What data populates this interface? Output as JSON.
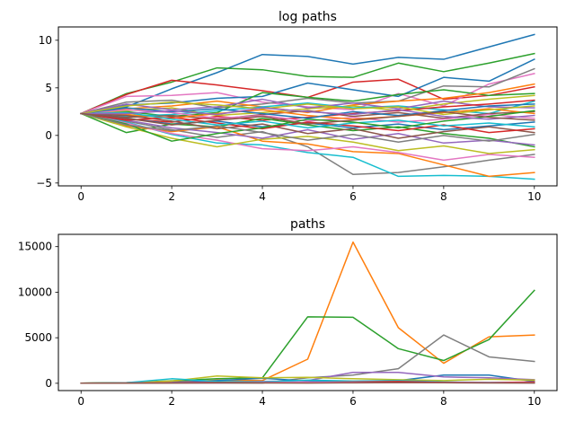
{
  "chart_data": [
    {
      "type": "line",
      "title": "log paths",
      "xlabel": "",
      "ylabel": "",
      "xlim": [
        -0.5,
        10.5
      ],
      "ylim": [
        -5.3,
        11.4
      ],
      "xticks": [
        0,
        2,
        4,
        6,
        8,
        10
      ],
      "yticks": [
        -5,
        0,
        5,
        10
      ],
      "grid": false,
      "legend": "none",
      "x": [
        0,
        1,
        2,
        3,
        4,
        5,
        6,
        7,
        8,
        9,
        10
      ],
      "series": [
        {
          "color": "#1f77b4",
          "values": [
            2.3,
            3.0,
            4.9,
            6.6,
            8.5,
            8.3,
            7.5,
            8.2,
            8.0,
            9.3,
            10.6
          ]
        },
        {
          "color": "#2ca02c",
          "values": [
            2.3,
            4.4,
            5.6,
            7.1,
            6.9,
            6.2,
            6.1,
            7.6,
            6.7,
            7.6,
            8.6
          ]
        },
        {
          "color": "#d62728",
          "values": [
            2.3,
            4.3,
            5.8,
            5.3,
            4.7,
            4.0,
            5.6,
            5.9,
            3.8,
            4.2,
            5.1
          ]
        },
        {
          "color": "#e377c2",
          "values": [
            2.3,
            4.1,
            4.2,
            4.5,
            3.5,
            3.0,
            2.7,
            4.4,
            3.1,
            5.4,
            6.5
          ]
        },
        {
          "color": "#1f77b4",
          "values": [
            2.3,
            3.2,
            3.4,
            3.9,
            4.1,
            5.5,
            4.8,
            4.1,
            6.1,
            5.7,
            8.0
          ]
        },
        {
          "color": "#7f7f7f",
          "values": [
            2.3,
            3.5,
            3.7,
            2.9,
            3.3,
            3.9,
            3.4,
            3.6,
            5.2,
            5.1,
            7.0
          ]
        },
        {
          "color": "#2ca02c",
          "values": [
            2.3,
            2.5,
            2.0,
            2.4,
            4.5,
            4.0,
            3.6,
            4.3,
            4.8,
            4.2,
            4.4
          ]
        },
        {
          "color": "#ff7f0e",
          "values": [
            2.3,
            2.8,
            3.1,
            3.6,
            3.0,
            2.4,
            3.2,
            3.6,
            3.9,
            4.5,
            5.4
          ]
        },
        {
          "color": "#bcbd22",
          "values": [
            2.3,
            2.6,
            2.9,
            2.1,
            2.4,
            2.8,
            3.1,
            2.6,
            3.3,
            3.8,
            4.2
          ]
        },
        {
          "color": "#17becf",
          "values": [
            2.3,
            2.0,
            2.2,
            2.6,
            3.0,
            3.4,
            2.9,
            3.1,
            2.7,
            2.3,
            3.6
          ]
        },
        {
          "color": "#9467bd",
          "values": [
            2.3,
            3.3,
            2.7,
            3.0,
            3.8,
            2.9,
            3.4,
            2.8,
            3.6,
            3.0,
            2.9
          ]
        },
        {
          "color": "#8c564b",
          "values": [
            2.3,
            1.9,
            2.1,
            1.7,
            2.2,
            2.6,
            2.0,
            2.4,
            1.8,
            2.3,
            2.5
          ]
        },
        {
          "color": "#d62728",
          "values": [
            2.3,
            1.7,
            1.4,
            2.0,
            1.6,
            1.9,
            2.3,
            2.6,
            3.0,
            3.3,
            3.7
          ]
        },
        {
          "color": "#e377c2",
          "values": [
            2.3,
            2.7,
            2.4,
            1.8,
            2.1,
            1.5,
            1.9,
            1.4,
            1.7,
            2.2,
            1.8
          ]
        },
        {
          "color": "#1f77b4",
          "values": [
            2.3,
            1.8,
            1.2,
            1.5,
            0.9,
            1.3,
            0.8,
            1.2,
            0.6,
            1.0,
            1.4
          ]
        },
        {
          "color": "#ff7f0e",
          "values": [
            2.3,
            2.2,
            1.8,
            2.3,
            2.7,
            2.1,
            1.7,
            2.0,
            2.4,
            2.8,
            2.3
          ]
        },
        {
          "color": "#2ca02c",
          "values": [
            2.3,
            0.3,
            1.2,
            0.9,
            1.8,
            1.1,
            0.5,
            0.9,
            0.2,
            -0.3,
            -1.2
          ]
        },
        {
          "color": "#7f7f7f",
          "values": [
            2.3,
            1.5,
            0.6,
            -0.2,
            0.4,
            -1.2,
            -4.1,
            -3.9,
            -3.3,
            -2.6,
            -2.0
          ]
        },
        {
          "color": "#17becf",
          "values": [
            2.3,
            1.4,
            0.1,
            -0.8,
            -1.0,
            -1.8,
            -2.3,
            -4.3,
            -4.2,
            -4.3,
            -4.6
          ]
        },
        {
          "color": "#ff7f0e",
          "values": [
            2.3,
            1.0,
            0.4,
            0.9,
            -0.6,
            -0.9,
            -1.7,
            -1.9,
            -3.1,
            -4.3,
            -3.9
          ]
        },
        {
          "color": "#e377c2",
          "values": [
            2.3,
            1.3,
            0.2,
            -0.5,
            -1.4,
            -1.6,
            -1.2,
            -1.8,
            -2.6,
            -2.0,
            -2.3
          ]
        },
        {
          "color": "#bcbd22",
          "values": [
            2.3,
            0.9,
            -0.3,
            -1.2,
            -0.4,
            -0.1,
            -0.7,
            -1.6,
            -1.1,
            -1.9,
            -1.5
          ]
        },
        {
          "color": "#9467bd",
          "values": [
            2.3,
            1.6,
            0.8,
            0.3,
            -0.3,
            0.6,
            -0.4,
            0.2,
            -0.8,
            -0.5,
            -1.0
          ]
        },
        {
          "color": "#8c564b",
          "values": [
            2.3,
            2.1,
            1.5,
            0.7,
            1.2,
            0.2,
            0.7,
            -0.3,
            0.4,
            0.9,
            0.3
          ]
        },
        {
          "color": "#d62728",
          "values": [
            2.3,
            1.6,
            1.9,
            1.3,
            0.7,
            1.4,
            1.0,
            0.5,
            1.1,
            0.3,
            0.7
          ]
        },
        {
          "color": "#17becf",
          "values": [
            2.3,
            2.4,
            1.7,
            1.1,
            1.5,
            0.8,
            1.3,
            1.6,
            1.0,
            1.3,
            0.9
          ]
        },
        {
          "color": "#2ca02c",
          "values": [
            2.3,
            1.2,
            -0.6,
            0.2,
            0.8,
            1.7,
            1.4,
            0.8,
            1.5,
            2.0,
            2.6
          ]
        },
        {
          "color": "#1f77b4",
          "values": [
            2.3,
            2.9,
            2.5,
            2.8,
            2.3,
            1.8,
            2.5,
            2.1,
            2.6,
            3.1,
            3.3
          ]
        },
        {
          "color": "#bcbd22",
          "values": [
            2.3,
            3.1,
            3.5,
            3.2,
            2.8,
            3.3,
            2.8,
            3.0,
            2.2,
            2.7,
            3.1
          ]
        },
        {
          "color": "#7f7f7f",
          "values": [
            2.3,
            1.1,
            0.5,
            1.0,
            0.3,
            -0.5,
            0.1,
            -0.7,
            0.0,
            -0.6,
            0.1
          ]
        },
        {
          "color": "#9467bd",
          "values": [
            2.3,
            2.3,
            2.6,
            2.2,
            2.9,
            2.5,
            2.2,
            2.7,
            2.0,
            1.7,
            2.1
          ]
        },
        {
          "color": "#8c564b",
          "values": [
            2.3,
            1.8,
            1.1,
            1.6,
            2.0,
            1.2,
            1.6,
            2.0,
            2.5,
            1.9,
            1.6
          ]
        }
      ]
    },
    {
      "type": "line",
      "title": "paths",
      "xlabel": "",
      "ylabel": "",
      "xlim": [
        -0.5,
        10.5
      ],
      "ylim": [
        -800,
        16350
      ],
      "xticks": [
        0,
        2,
        4,
        6,
        8,
        10
      ],
      "yticks": [
        0,
        5000,
        10000,
        15000
      ],
      "grid": false,
      "legend": "none",
      "x": [
        0,
        1,
        2,
        3,
        4,
        5,
        6,
        7,
        8,
        9,
        10
      ],
      "series": [
        {
          "color": "#ff7f0e",
          "values": [
            10,
            40,
            150,
            350,
            300,
            2650,
            15500,
            6100,
            2200,
            5100,
            5300
          ]
        },
        {
          "color": "#2ca02c",
          "values": [
            10,
            80,
            270,
            500,
            600,
            7300,
            7250,
            3800,
            2500,
            4800,
            10200
          ]
        },
        {
          "color": "#7f7f7f",
          "values": [
            10,
            30,
            40,
            20,
            30,
            600,
            900,
            1600,
            5300,
            2900,
            2400
          ]
        },
        {
          "color": "#1f77b4",
          "values": [
            10,
            20,
            100,
            300,
            550,
            250,
            200,
            300,
            900,
            900,
            200
          ]
        },
        {
          "color": "#9467bd",
          "values": [
            10,
            30,
            80,
            150,
            200,
            300,
            1200,
            1200,
            700,
            600,
            400
          ]
        },
        {
          "color": "#bcbd22",
          "values": [
            10,
            40,
            250,
            800,
            600,
            650,
            500,
            400,
            300,
            450,
            350
          ]
        },
        {
          "color": "#17becf",
          "values": [
            10,
            60,
            500,
            200,
            150,
            350,
            250,
            300,
            150,
            100,
            120
          ]
        },
        {
          "color": "#d62728",
          "values": [
            10,
            30,
            60,
            90,
            70,
            100,
            150,
            200,
            100,
            80,
            150
          ]
        },
        {
          "color": "#e377c2",
          "values": [
            10,
            20,
            50,
            40,
            80,
            120,
            100,
            60,
            90,
            70,
            50
          ]
        },
        {
          "color": "#8c564b",
          "values": [
            10,
            15,
            30,
            50,
            40,
            30,
            50,
            70,
            60,
            40,
            30
          ]
        }
      ]
    }
  ]
}
